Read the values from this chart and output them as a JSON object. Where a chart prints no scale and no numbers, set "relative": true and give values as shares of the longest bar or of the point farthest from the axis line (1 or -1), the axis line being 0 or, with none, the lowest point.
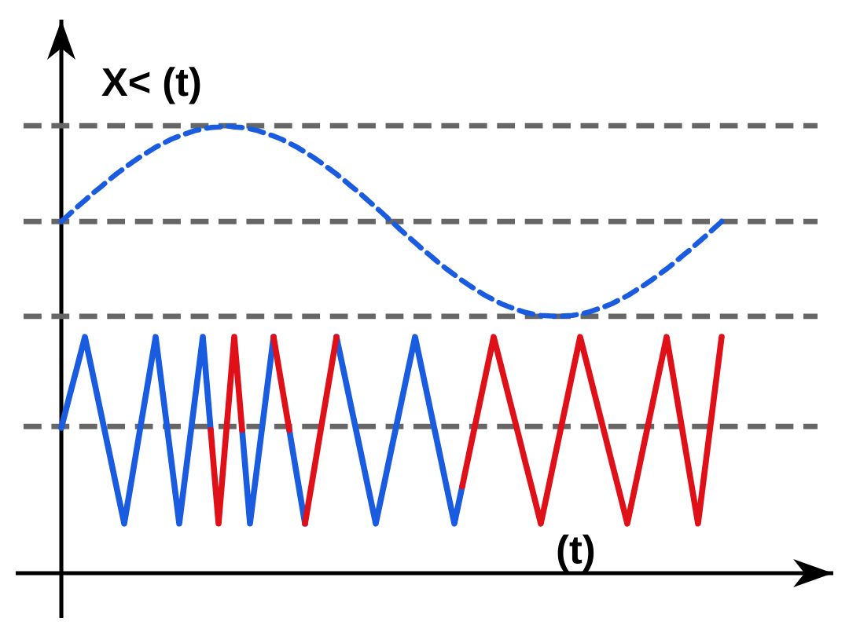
{
  "chart_data": {
    "type": "line",
    "relative": true,
    "ylabel": "X< (t)",
    "xlabel": "(t)",
    "marker": "none",
    "categories": [
      null,
      null,
      null,
      null,
      null,
      null,
      null,
      null,
      null,
      null,
      null,
      null,
      null,
      null,
      null,
      null,
      null,
      null,
      null,
      null,
      null,
      null,
      null,
      null,
      null,
      null,
      null,
      null,
      null,
      null,
      null,
      null,
      null,
      null,
      null,
      null,
      null,
      null,
      null,
      null,
      null,
      null,
      null,
      null,
      null,
      null,
      null,
      null,
      null,
      null,
      null,
      null,
      null,
      null,
      null,
      null,
      null,
      null,
      null,
      null,
      null,
      null,
      null,
      null,
      null,
      null,
      null,
      null,
      null,
      null,
      null,
      null,
      null,
      null,
      null,
      null,
      null,
      null,
      null,
      null,
      null,
      null,
      null,
      null,
      null
    ],
    "ref_lines": [
      {
        "axis": "y",
        "value": 1.0,
        "color": "#666666",
        "line_style": "dashed"
      },
      {
        "axis": "y",
        "value": 0.786,
        "color": "#666666",
        "line_style": "dashed"
      },
      {
        "axis": "y",
        "value": 0.574,
        "color": "#666666",
        "line_style": "dashed"
      },
      {
        "axis": "y",
        "value": 0.328,
        "color": "#666666",
        "line_style": "dashed"
      }
    ],
    "series": [
      {
        "color": "#1a5ce0",
        "line_style": "dashed",
        "values": [
          0.786,
          0.802,
          0.818,
          0.833,
          0.849,
          0.863,
          0.878,
          0.892,
          0.905,
          0.918,
          0.93,
          0.941,
          0.952,
          0.961,
          0.97,
          0.977,
          0.983,
          0.989,
          0.993,
          0.996,
          0.997,
          1.0,
          0.997,
          0.996,
          0.993,
          0.989,
          0.983,
          0.977,
          0.97,
          0.961,
          0.952,
          0.941,
          0.93,
          0.918,
          0.905,
          0.892,
          0.878,
          0.863,
          0.849,
          0.833,
          0.818,
          0.802,
          0.786,
          0.77,
          0.754,
          0.739,
          0.723,
          0.709,
          0.694,
          0.68,
          0.667,
          0.654,
          0.642,
          0.631,
          0.62,
          0.611,
          0.602,
          0.595,
          0.589,
          0.583,
          0.579,
          0.576,
          0.575,
          0.574,
          0.575,
          0.576,
          0.579,
          0.583,
          0.589,
          0.595,
          0.602,
          0.611,
          0.62,
          0.631,
          0.642,
          0.654,
          0.667,
          0.68,
          0.694,
          0.709,
          0.723,
          0.739,
          0.754,
          0.77,
          0.786
        ]
      },
      {
        "color": "#1a5ce0",
        "line_style": "solid",
        "values": [
          0.325,
          0.393,
          0.46,
          0.528,
          0.445,
          0.361,
          0.278,
          0.194,
          0.111,
          0.215,
          0.32,
          0.424,
          0.528,
          0.389,
          0.25,
          0.111,
          0.25,
          0.389,
          0.528,
          0.32,
          null,
          null,
          null,
          0.32,
          0.111,
          0.25,
          0.389,
          0.528,
          null,
          0.32,
          0.215,
          0.111,
          null,
          null,
          null,
          0.528,
          0.445,
          0.361,
          0.278,
          0.194,
          0.111,
          0.194,
          0.278,
          0.361,
          0.445,
          0.528,
          0.445,
          0.361,
          0.278,
          0.194,
          0.111,
          0.194,
          null,
          null,
          null,
          null,
          null,
          null,
          null,
          null,
          null,
          null,
          null,
          null,
          null,
          null,
          null,
          null,
          null,
          null,
          null,
          null,
          null,
          null,
          null,
          null,
          null,
          null,
          null,
          null,
          null,
          null,
          null,
          null,
          null
        ]
      },
      {
        "color": "#e01018",
        "line_style": "solid",
        "values": [
          null,
          null,
          null,
          null,
          null,
          null,
          null,
          null,
          null,
          null,
          null,
          null,
          null,
          null,
          null,
          null,
          null,
          null,
          null,
          0.32,
          0.111,
          0.32,
          0.528,
          0.32,
          null,
          null,
          null,
          0.528,
          0.424,
          0.32,
          null,
          0.111,
          0.215,
          0.32,
          0.424,
          0.528,
          null,
          null,
          null,
          null,
          null,
          null,
          null,
          null,
          null,
          null,
          null,
          null,
          null,
          null,
          null,
          0.194,
          0.278,
          0.361,
          0.445,
          0.528,
          0.459,
          0.389,
          0.32,
          0.25,
          0.181,
          0.111,
          0.194,
          0.278,
          0.361,
          0.445,
          0.528,
          0.459,
          0.389,
          0.32,
          0.25,
          0.181,
          0.111,
          0.194,
          0.278,
          0.361,
          0.445,
          0.528,
          0.424,
          0.32,
          0.215,
          0.111,
          0.25,
          0.389,
          0.528
        ]
      }
    ]
  }
}
